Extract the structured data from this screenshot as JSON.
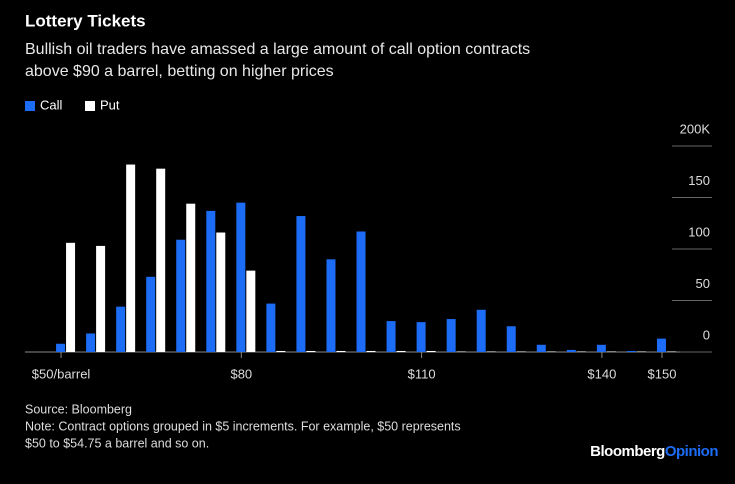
{
  "chart_data": {
    "type": "bar",
    "title": "Lottery Tickets",
    "subtitle": [
      "Bullish oil traders have amassed a large amount of call option contracts",
      "above $90 a barrel, betting on higher prices"
    ],
    "x": [
      50,
      55,
      60,
      65,
      70,
      75,
      80,
      85,
      90,
      95,
      100,
      105,
      110,
      115,
      120,
      125,
      130,
      135,
      140,
      145,
      150
    ],
    "series": [
      {
        "name": "Call",
        "color": "#1d6cf5",
        "values": [
          8,
          18,
          44,
          73,
          109,
          137,
          145,
          47,
          132,
          90,
          117,
          30,
          29,
          32,
          41,
          25,
          7,
          2,
          7,
          1,
          13
        ]
      },
      {
        "name": "Put",
        "color": "#ffffff",
        "values": [
          106,
          103,
          182,
          178,
          144,
          116,
          79,
          1,
          1,
          1,
          1,
          1,
          1,
          0.5,
          0.5,
          0.5,
          0.5,
          0.5,
          0.5,
          0.5,
          0.5
        ]
      }
    ],
    "xlim": [
      44,
      153
    ],
    "xticks": [
      {
        "value": 50,
        "label": "$50/barrel"
      },
      {
        "value": 80,
        "label": "$80"
      },
      {
        "value": 110,
        "label": "$110"
      },
      {
        "value": 140,
        "label": "$140"
      },
      {
        "value": 150,
        "label": "$150"
      }
    ],
    "ylim": [
      0,
      200
    ],
    "yticks": [
      {
        "value": 200,
        "label": "200K"
      },
      150,
      100,
      50,
      0
    ],
    "legend": "top-left",
    "source": "Source: Bloomberg",
    "note": [
      "Note: Contract options grouped in $5 increments. For example, $50 represents",
      "$50 to $54.75 a barrel and so on."
    ],
    "brand": {
      "first": "Bloomberg",
      "second": "Opinion"
    }
  }
}
